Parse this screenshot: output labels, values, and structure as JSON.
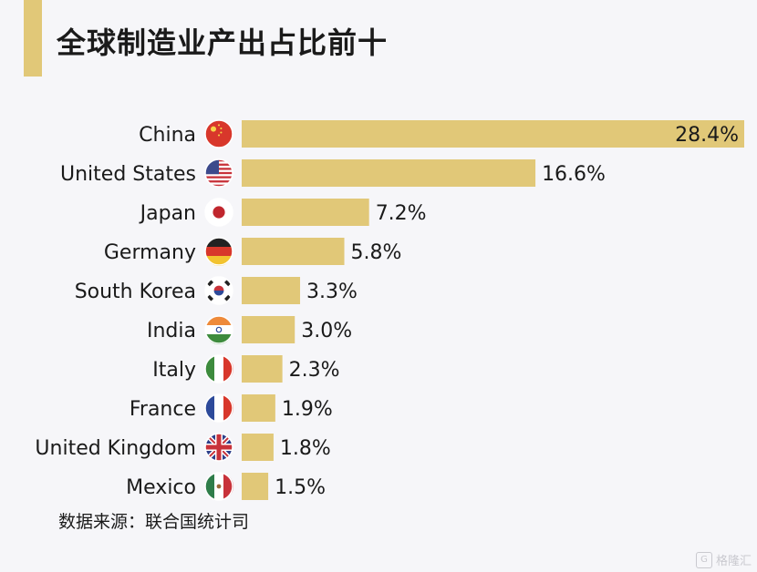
{
  "header": {
    "title": "全球制造业产出占比前十"
  },
  "footer": {
    "source": "数据来源：联合国统计司"
  },
  "watermark": {
    "text": "格隆汇"
  },
  "colors": {
    "bar": "#e1c878",
    "accent": "#e1c878",
    "text": "#1a1a1a"
  },
  "chart_data": {
    "type": "bar",
    "orientation": "horizontal",
    "categories": [
      "China",
      "United States",
      "Japan",
      "Germany",
      "South Korea",
      "India",
      "Italy",
      "France",
      "United Kingdom",
      "Mexico"
    ],
    "values": [
      28.4,
      16.6,
      7.2,
      5.8,
      3.3,
      3.0,
      2.3,
      1.9,
      1.8,
      1.5
    ],
    "value_labels": [
      "28.4%",
      "16.6%",
      "7.2%",
      "5.8%",
      "3.3%",
      "3.0%",
      "2.3%",
      "1.9%",
      "1.8%",
      "1.5%"
    ],
    "flags": [
      "china-flag-icon",
      "usa-flag-icon",
      "japan-flag-icon",
      "germany-flag-icon",
      "south-korea-flag-icon",
      "india-flag-icon",
      "italy-flag-icon",
      "france-flag-icon",
      "uk-flag-icon",
      "mexico-flag-icon"
    ],
    "unit": "%",
    "xlim": [
      0,
      28.4
    ],
    "grid": false
  }
}
